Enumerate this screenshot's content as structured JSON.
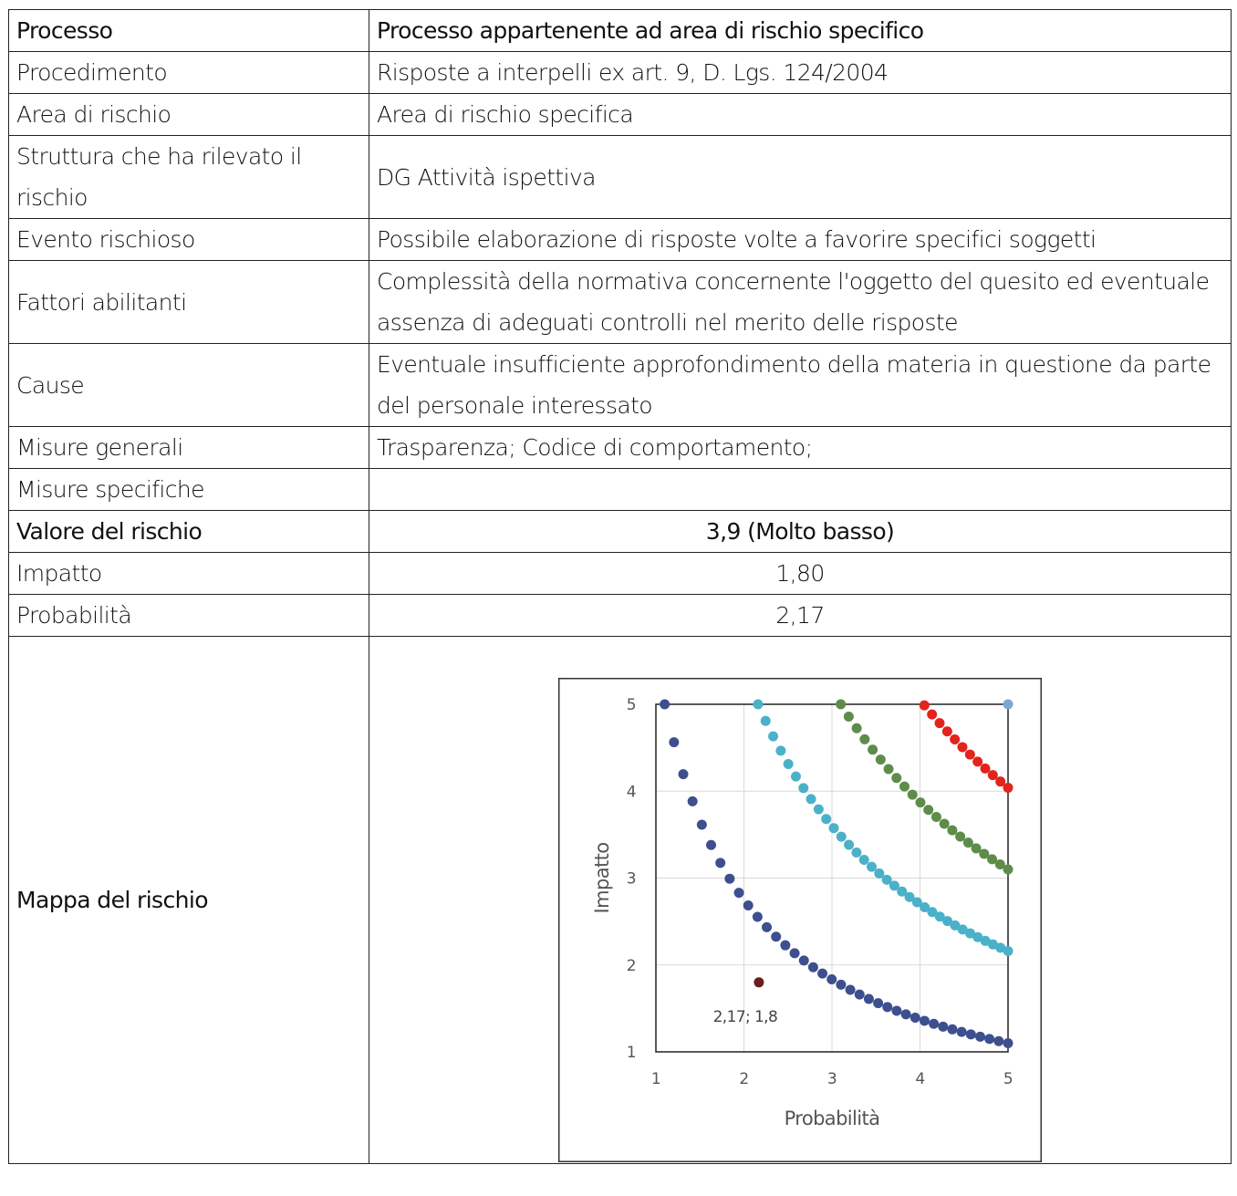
{
  "table": {
    "rows": [
      {
        "label": "Processo",
        "value": "Processo appartenente ad area di rischio specifico"
      },
      {
        "label": "Procedimento",
        "value": "Risposte a interpelli ex art. 9, D. Lgs. 124/2004"
      },
      {
        "label": "Area di rischio",
        "value": "Area di rischio specifica"
      },
      {
        "label": "Struttura che ha rilevato il rischio",
        "value": "DG Attività ispettiva"
      },
      {
        "label": "Evento rischioso",
        "value": "Possibile elaborazione di risposte volte a favorire specifici soggetti"
      },
      {
        "label": "Fattori abilitanti",
        "value": "Complessità della normativa concernente l'oggetto del quesito ed eventuale assenza di adeguati controlli nel merito delle risposte"
      },
      {
        "label": "Cause",
        "value": "Eventuale insufficiente approfondimento della materia in questione da parte del personale interessato"
      },
      {
        "label": "Misure generali",
        "value": "Trasparenza; Codice di comportamento;"
      },
      {
        "label": "Misure specifiche",
        "value": ""
      },
      {
        "label": "Valore del rischio",
        "value": "3,9 (Molto basso)"
      },
      {
        "label": "Impatto",
        "value": "1,80"
      },
      {
        "label": "Probabilità",
        "value": "2,17"
      },
      {
        "label": "Mappa del rischio"
      }
    ]
  },
  "chart_data": {
    "type": "scatter",
    "xlabel": "Probabilità",
    "ylabel": "Impatto",
    "xlim": [
      1,
      5
    ],
    "ylim": [
      1,
      5
    ],
    "xticks": [
      "1",
      "2",
      "3",
      "4",
      "5"
    ],
    "yticks": [
      "1",
      "2",
      "3",
      "4",
      "5"
    ],
    "grid": true,
    "curves": [
      {
        "product": 5.5,
        "x_start": 1.1,
        "x_end": 5,
        "count": 38,
        "color": "#3d4f8e"
      },
      {
        "product": 10.8,
        "x_start": 2.16,
        "x_end": 5,
        "count": 34,
        "color": "#4ab1c9"
      },
      {
        "product": 15.5,
        "x_start": 3.1,
        "x_end": 5,
        "count": 22,
        "color": "#5e8c4a"
      },
      {
        "product": 20.2,
        "x_start": 4.05,
        "x_end": 5,
        "count": 12,
        "color": "#e3231c"
      }
    ],
    "extra_points": [
      {
        "x": 5,
        "y": 5,
        "color": "#7fa7d3"
      }
    ],
    "highlight": {
      "x": 2.17,
      "y": 1.8,
      "label": "2,17; 1,8",
      "color": "#6b1f1f"
    }
  }
}
